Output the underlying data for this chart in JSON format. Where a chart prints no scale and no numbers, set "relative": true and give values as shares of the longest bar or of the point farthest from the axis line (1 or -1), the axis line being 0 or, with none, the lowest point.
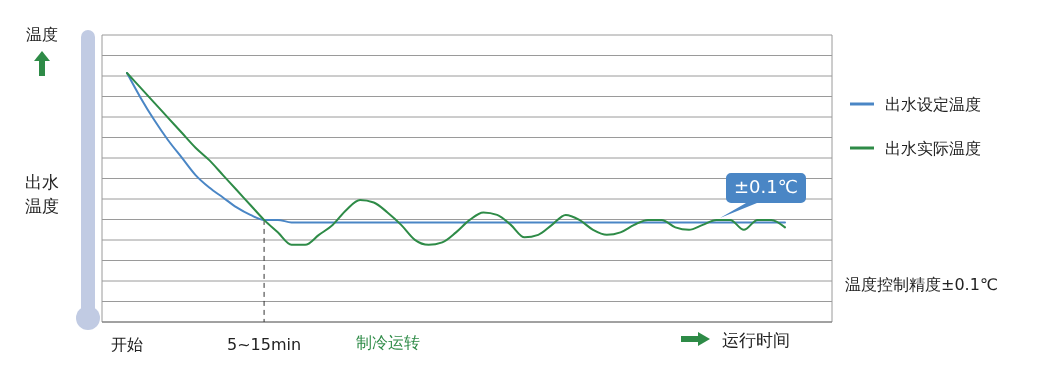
{
  "chart_data": {
    "type": "line",
    "relative": true,
    "xlabel": "运行时间",
    "ylabel": "出水温度",
    "grid": true,
    "legend": "right",
    "line_style": "solid",
    "categories": [
      "开始",
      null,
      null,
      null,
      null,
      null,
      null,
      null,
      null,
      null,
      "5~15min",
      null,
      null,
      null,
      null,
      null,
      null,
      null,
      null,
      null,
      null,
      null,
      null,
      null,
      null,
      null,
      null,
      null,
      null,
      null,
      null,
      null,
      null,
      null,
      null,
      null,
      null,
      null,
      null,
      null,
      null,
      null,
      null,
      null,
      null,
      null,
      null,
      null,
      null
    ],
    "series": [
      {
        "name": "出水设定温度",
        "color": "#4a86c5",
        "values": [
          1,
          0.9,
          0.81,
          0.73,
          0.66,
          0.59,
          0.54,
          0.5,
          0.46,
          0.43,
          0.41,
          0.41,
          0.4,
          0.4,
          0.4,
          0.4,
          0.4,
          0.4,
          0.4,
          0.4,
          0.4,
          0.4,
          0.4,
          0.4,
          0.4,
          0.4,
          0.4,
          0.4,
          0.4,
          0.4,
          0.4,
          0.4,
          0.4,
          0.4,
          0.4,
          0.4,
          0.4,
          0.4,
          0.4,
          0.4,
          0.4,
          0.4,
          0.4,
          0.4,
          0.4,
          0.4,
          0.4,
          0.4,
          0.4
        ]
      },
      {
        "name": "出水实际温度",
        "color": "#2e8b47",
        "values": [
          1,
          0.94,
          0.88,
          0.82,
          0.76,
          0.7,
          0.65,
          0.59,
          0.53,
          0.47,
          0.41,
          0.36,
          0.31,
          0.31,
          0.35,
          0.39,
          0.45,
          0.49,
          0.48,
          0.44,
          0.39,
          0.33,
          0.31,
          0.32,
          0.36,
          0.41,
          0.44,
          0.43,
          0.39,
          0.34,
          0.35,
          0.39,
          0.43,
          0.41,
          0.37,
          0.35,
          0.36,
          0.39,
          0.41,
          0.41,
          0.38,
          0.37,
          0.39,
          0.41,
          0.41,
          0.37,
          0.41,
          0.41,
          0.38
        ]
      }
    ],
    "ref_lines": [
      {
        "axis": "x",
        "value": "5~15min",
        "line_style": "dashed",
        "color": "#333333"
      }
    ],
    "annotations": [
      "温度",
      "制冷运转",
      "±0.1℃",
      "温度控制精度±0.1℃"
    ]
  }
}
